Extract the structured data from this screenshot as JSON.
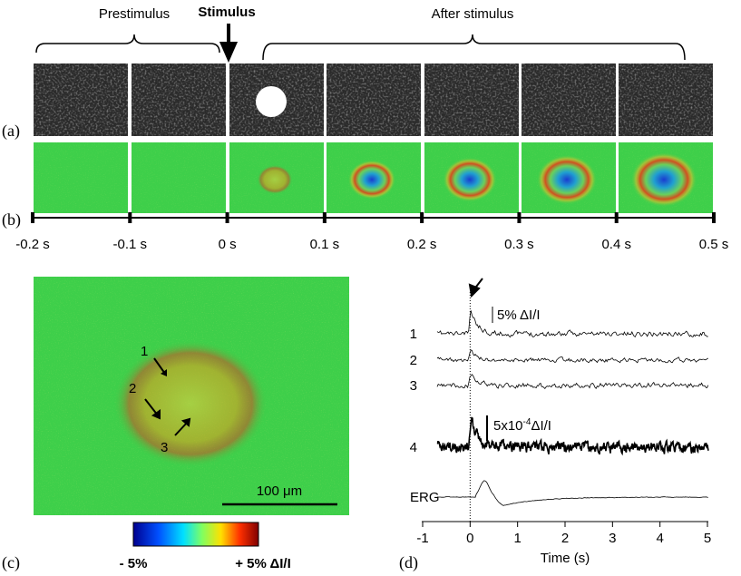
{
  "panel_a": {
    "label": "(a)",
    "prestimulus": "Prestimulus",
    "stimulus": "Stimulus",
    "after": "After stimulus"
  },
  "panel_b": {
    "label": "(b)",
    "timeline": [
      "-0.2 s",
      "-0.1 s",
      "0 s",
      "0.1 s",
      "0.2 s",
      "0.3 s",
      "0.4 s",
      "0.5 s"
    ]
  },
  "panel_c": {
    "label": "(c)",
    "markers": [
      "1",
      "2",
      "3"
    ],
    "scale_bar": "100 μm",
    "colorbar_min": "- 5%",
    "colorbar_max": "+ 5% ΔI/I"
  },
  "panel_d": {
    "label": "(d)",
    "trace_labels": [
      "1",
      "2",
      "3",
      "4",
      "ERG"
    ],
    "scale_1": "5% ΔI/I",
    "scale_2_base": "5x10",
    "scale_2_exp": "-4",
    "scale_2_unit": "ΔI/I",
    "xlabel": "Time (s)",
    "xlim": [
      -1,
      5
    ],
    "xticks": [
      -1,
      0,
      1,
      2,
      3,
      4,
      5
    ]
  }
}
